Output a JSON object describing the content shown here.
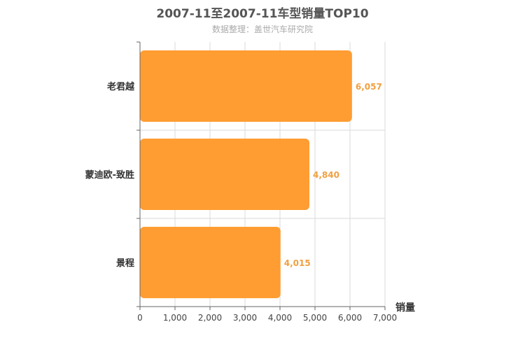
{
  "chart_data": {
    "type": "bar",
    "orientation": "horizontal",
    "title": "2007-11至2007-11车型销量TOP10",
    "subtitle": "数据整理：盖世汽车研究院",
    "categories": [
      "老君越",
      "蒙迪欧-致胜",
      "景程"
    ],
    "values": [
      6057,
      4840,
      4015
    ],
    "value_labels": [
      "6,057",
      "4,840",
      "4,015"
    ],
    "xlabel": "销量",
    "ylabel": "",
    "xlim": [
      0,
      7000
    ],
    "x_ticks": [
      0,
      1000,
      2000,
      3000,
      4000,
      5000,
      6000,
      7000
    ],
    "x_tick_labels": [
      "0",
      "1,000",
      "2,000",
      "3,000",
      "4,000",
      "5,000",
      "6,000",
      "7,000"
    ],
    "grid": true,
    "legend": "none",
    "colors": {
      "bar": "#ff9d33",
      "label": "#f0a040",
      "grid": "#d9d9d9",
      "axis": "#666666"
    }
  }
}
